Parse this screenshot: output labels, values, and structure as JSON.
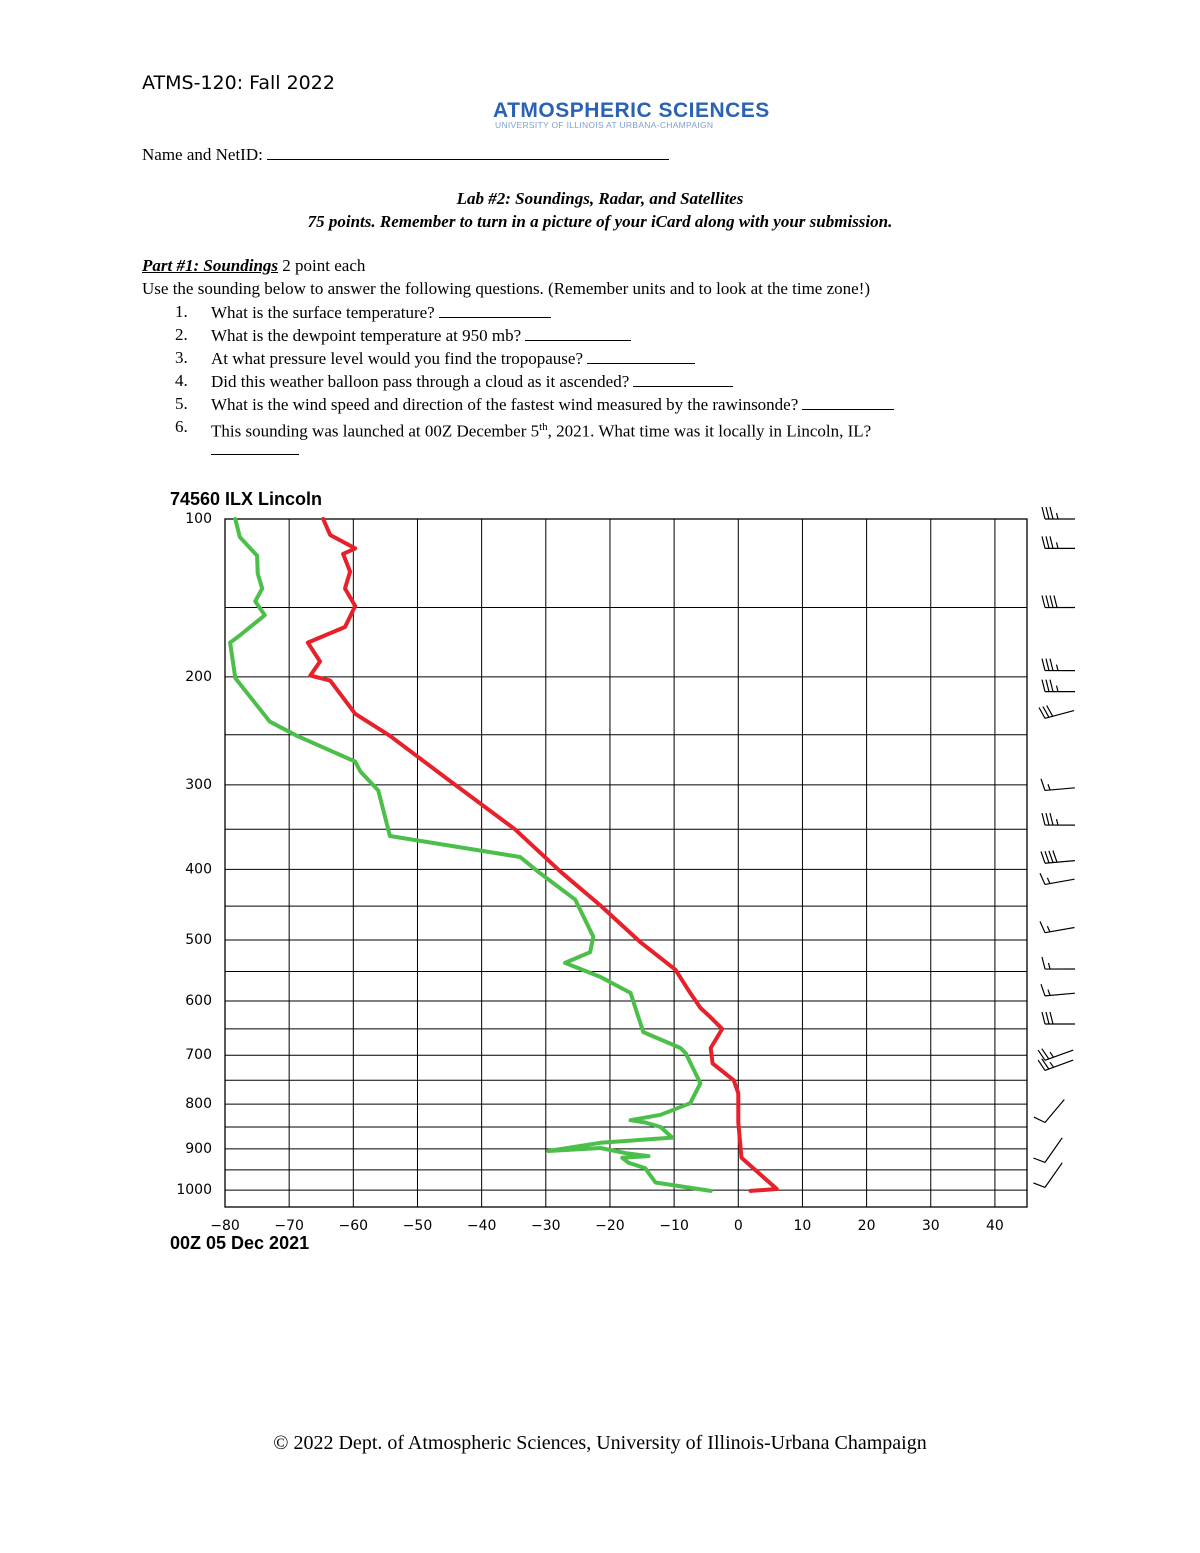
{
  "header": {
    "course": "ATMS-120: Fall 2022",
    "logo_title": "ATMOSPHERIC SCIENCES",
    "logo_subtitle": "UNIVERSITY OF ILLINOIS AT URBANA-CHAMPAIGN"
  },
  "name_label": "Name and NetID:",
  "lab_title": "Lab #2: Soundings, Radar, and Satellites",
  "lab_note": "75 points. Remember to turn in a picture of your iCard along with your submission.",
  "part": {
    "title": "Part #1: Soundings",
    "points": "2 point each"
  },
  "instructions": "Use the sounding below to answer the following questions. (Remember units and to look at the time zone!)",
  "questions": [
    {
      "number": "1.",
      "text": "What is the surface temperature?"
    },
    {
      "number": "2.",
      "text": "What is the dewpoint temperature at 950 mb?"
    },
    {
      "number": "3.",
      "text": "At what pressure level would you find the tropopause?"
    },
    {
      "number": "4.",
      "text": "Did this weather balloon pass through a cloud as it ascended?"
    },
    {
      "number": "5.",
      "text": "What is the wind speed and direction of the fastest wind measured by the rawinsonde?"
    },
    {
      "number": "6.",
      "text": "This sounding was launched at 00Z December 5",
      "superscript": "th",
      "text_end": ", 2021. What time was it locally in Lincoln, IL?"
    }
  ],
  "chart_data": {
    "type": "line",
    "title": "74560 ILX Lincoln",
    "subtitle": "00Z 05 Dec 2021",
    "xlim": [
      -80,
      45
    ],
    "xticks": [
      {
        "value": -80,
        "label": "−80"
      },
      {
        "value": -70,
        "label": "−70"
      },
      {
        "value": -60,
        "label": "−60"
      },
      {
        "value": -50,
        "label": "−50"
      },
      {
        "value": -40,
        "label": "−40"
      },
      {
        "value": -30,
        "label": "−30"
      },
      {
        "value": -20,
        "label": "−20"
      },
      {
        "value": -10,
        "label": "−10"
      },
      0,
      10,
      20,
      30,
      40
    ],
    "ylim": [
      1043,
      100
    ],
    "y_scale": "power",
    "y_exponent": 0.286,
    "yticks": [
      100,
      200,
      300,
      400,
      500,
      600,
      700,
      800,
      900,
      1000
    ],
    "y_minor_ticks": [
      150,
      250,
      350,
      450,
      550,
      650,
      750,
      850,
      950
    ],
    "grid": true,
    "series": [
      {
        "color": "#e8202a",
        "x": [
          1.9,
          6.0,
          3.5,
          0.5,
          0,
          0,
          -0.7,
          -4.0,
          -4.3,
          -2.5,
          -4.3,
          -5.9,
          -7.5,
          -9.8,
          -15.3,
          -21.5,
          -27.7,
          -34.8,
          -44.9,
          -54.3,
          -59.7,
          -63.6,
          -66.7,
          -65.2,
          -67.1,
          -61.3,
          -59.7,
          -61.3,
          -60.5,
          -61.6,
          -59.7,
          -63.6,
          -64.7
        ],
        "values": [
          1002,
          997,
          962,
          921,
          840,
          777,
          750,
          716,
          686,
          650,
          629,
          612,
          586,
          547,
          503,
          449,
          403,
          350,
          296,
          251,
          231,
          203,
          199,
          188,
          174,
          163,
          149,
          138,
          128,
          118,
          115,
          108,
          100
        ]
      },
      {
        "color": "#4cbf4a",
        "x": [
          -4.3,
          -12.9,
          -14.5,
          -17.1,
          -18.1,
          -14.0,
          -17.6,
          -21.5,
          -29.6,
          -21.5,
          -10.3,
          -12.1,
          -14.5,
          -16.8,
          -12.1,
          -7.5,
          -5.9,
          -8.2,
          -9.0,
          -14.8,
          -16.8,
          -21.5,
          -27.0,
          -23.1,
          -22.6,
          -25.4,
          -31.2,
          -34.0,
          -54.3,
          -56.1,
          -58.9,
          -59.7,
          -68.8,
          -73.0,
          -78.4,
          -79.2,
          -78.0,
          -73.8,
          -75.3,
          -74.2,
          -74.9,
          -75.0,
          -77.7,
          -78.4
        ],
        "values": [
          1002,
          981,
          946,
          933,
          921,
          917,
          910,
          898,
          905,
          886,
          874,
          850,
          840,
          835,
          823,
          798,
          756,
          696,
          686,
          656,
          586,
          559,
          536,
          519,
          495,
          441,
          403,
          384,
          358,
          306,
          286,
          276,
          251,
          238,
          201,
          174,
          170,
          155,
          146,
          138,
          129,
          119,
          109,
          100
        ]
      }
    ],
    "wind": [
      {
        "pressure": 100,
        "speed": 35,
        "direction": 270
      },
      {
        "pressure": 115,
        "speed": 35,
        "direction": 270
      },
      {
        "pressure": 150,
        "speed": 40,
        "direction": 270
      },
      {
        "pressure": 195,
        "speed": 35,
        "direction": 270
      },
      {
        "pressure": 212,
        "speed": 35,
        "direction": 270
      },
      {
        "pressure": 235,
        "speed": 30,
        "direction": 255
      },
      {
        "pressure": 306,
        "speed": 15,
        "direction": 265
      },
      {
        "pressure": 345,
        "speed": 35,
        "direction": 270
      },
      {
        "pressure": 392,
        "speed": 40,
        "direction": 265
      },
      {
        "pressure": 420,
        "speed": 15,
        "direction": 260
      },
      {
        "pressure": 489,
        "speed": 15,
        "direction": 260
      },
      {
        "pressure": 546,
        "speed": 15,
        "direction": 270
      },
      {
        "pressure": 591,
        "speed": 15,
        "direction": 265
      },
      {
        "pressure": 641,
        "speed": 30,
        "direction": 270
      },
      {
        "pressure": 710,
        "speed": 25,
        "direction": 250
      },
      {
        "pressure": 730,
        "speed": 25,
        "direction": 250
      },
      {
        "pressure": 840,
        "speed": 10,
        "direction": 220
      },
      {
        "pressure": 932,
        "speed": 10,
        "direction": 215
      },
      {
        "pressure": 993,
        "speed": 10,
        "direction": 215
      }
    ]
  },
  "footer": "© 2022 Dept. of Atmospheric Sciences, University of Illinois-Urbana Champaign"
}
